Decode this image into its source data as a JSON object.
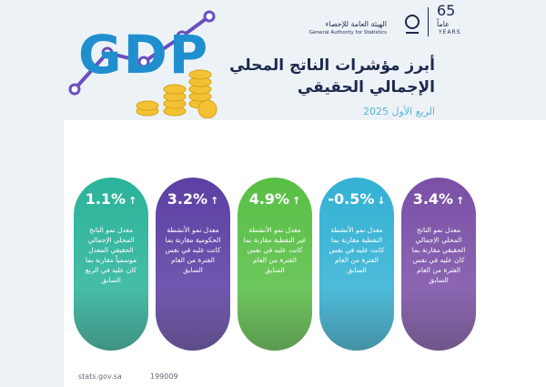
{
  "header": {
    "title_line1": "أبرز مؤشرات الناتج المحلي",
    "title_line2": "الإجمالي الحقيقي",
    "subtitle": "الربع الأول 2025",
    "graphic_text": "GDP"
  },
  "logo": {
    "name_ar": "الهيئة العامة للإحصاء",
    "name_en": "General Authority for Statistics",
    "anniversary": "65",
    "anniversary_ar": "عاماً",
    "anniversary_en": "YEARS"
  },
  "cards": [
    {
      "value": "1.1%",
      "arrow": "↑",
      "description": "معدل نمو الناتج المحلي الإجمالي الحقيقي المعدل موسمياً مقارنة بما كان عليه في الربع السابق",
      "color": "#2bb39a"
    },
    {
      "value": "3.2%",
      "arrow": "↑",
      "description": "معدل نمو الأنشطة الحكومية مقارنة بما كانت عليه في نفس الفترة من العام السابق",
      "color": "#5b3fa3"
    },
    {
      "value": "4.9%",
      "arrow": "↑",
      "description": "معدل نمو الأنشطة غير النفطية مقارنة بما كانت عليه في نفس الفترة من العام السابق",
      "color": "#58bf45"
    },
    {
      "value": "-0.5%",
      "arrow": "↓",
      "description": "معدل نمو الأنشطة النفطية مقارنة بما كانت عليه في نفس الفترة من العام السابق",
      "color": "#33b1d4"
    },
    {
      "value": "3.4%",
      "arrow": "↑",
      "description": "معدل نمو الناتج المحلي الإجمالي الحقيقي مقارنة بما كان عليه في نفس الفترة من العام السابق",
      "color": "#7a4fa6"
    }
  ],
  "footer": {
    "website": "stats.gov.sa",
    "phone": "199009"
  }
}
